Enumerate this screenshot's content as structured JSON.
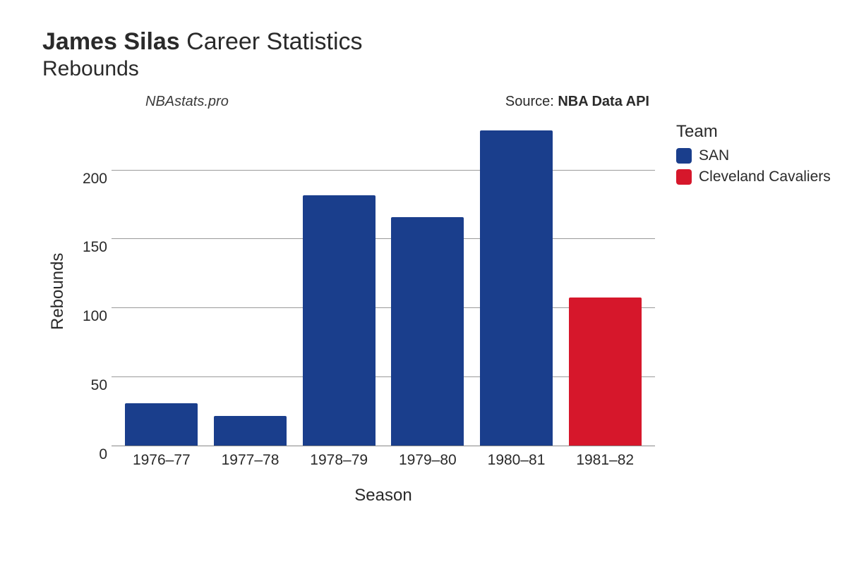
{
  "title": {
    "player_name": "James Silas",
    "suffix": "Career Statistics",
    "subtitle": "Rebounds"
  },
  "attribution": {
    "watermark": "NBAstats.pro",
    "source_label": "Source: ",
    "source_value": "NBA Data API"
  },
  "chart": {
    "type": "bar",
    "xlabel": "Season",
    "ylabel": "Rebounds",
    "ylim": [
      0,
      235
    ],
    "yticks": [
      0,
      50,
      100,
      150,
      200
    ],
    "categories": [
      "1976–77",
      "1977–78",
      "1978–79",
      "1979–80",
      "1980–81",
      "1981–82"
    ],
    "values": [
      31,
      22,
      182,
      166,
      229,
      108
    ],
    "bar_colors": [
      "#1a3e8c",
      "#1a3e8c",
      "#1a3e8c",
      "#1a3e8c",
      "#1a3e8c",
      "#d6172b"
    ],
    "background_color": "#ffffff",
    "grid_color": "#888888",
    "bar_width": 0.82,
    "title_fontsize": 34,
    "label_fontsize": 24,
    "tick_fontsize": 21
  },
  "legend": {
    "title": "Team",
    "items": [
      {
        "label": "SAN",
        "color": "#1a3e8c"
      },
      {
        "label": "Cleveland Cavaliers",
        "color": "#d6172b"
      }
    ]
  }
}
